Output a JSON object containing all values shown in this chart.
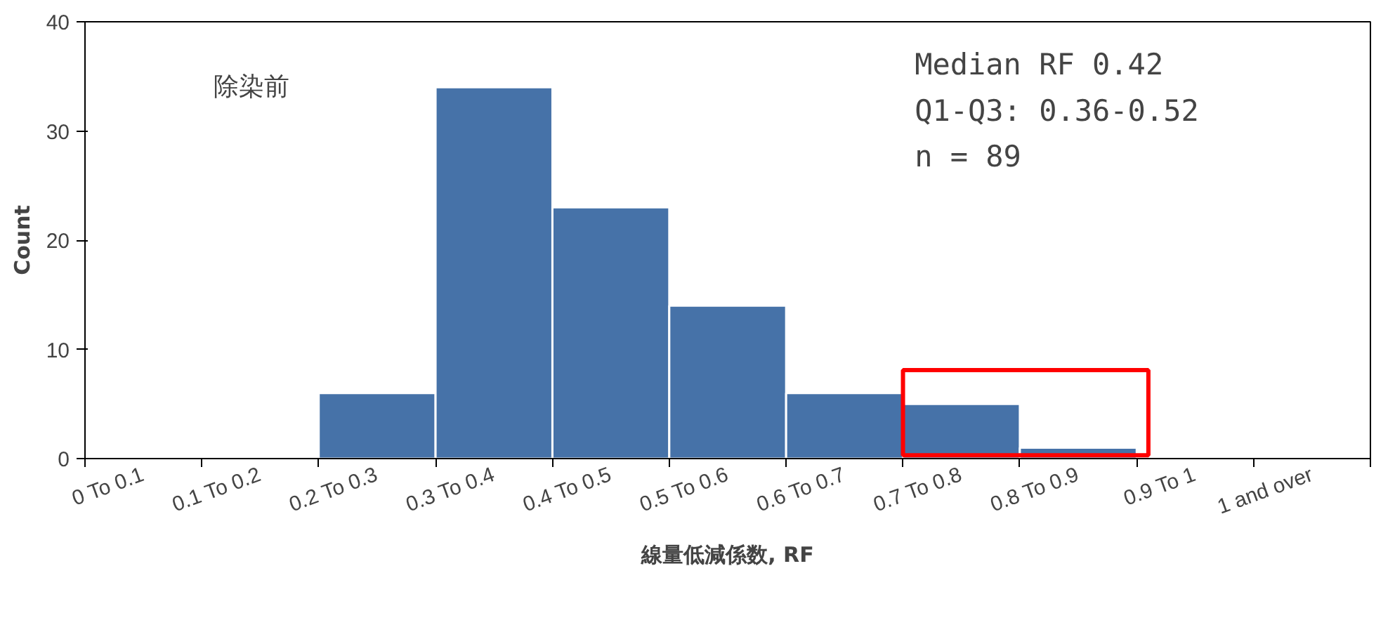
{
  "chart_data": {
    "type": "bar",
    "xlabel": "線量低減係数, RF",
    "ylabel": "Count",
    "categories": [
      "0 To 0.1",
      "0.1 To 0.2",
      "0.2 To 0.3",
      "0.3 To 0.4",
      "0.4 To 0.5",
      "0.5 To 0.6",
      "0.6 To 0.7",
      "0.7 To 0.8",
      "0.8 To 0.9",
      "0.9 To 1",
      "1 and over"
    ],
    "values": [
      0,
      0,
      6,
      34,
      23,
      14,
      6,
      5,
      1,
      0,
      0
    ],
    "color": "#4672a8",
    "ylim": [
      0,
      40
    ],
    "yticks": [
      0,
      10,
      20,
      30,
      40
    ],
    "annotations": [
      "除染前",
      "Median RF  0.42",
      "Q1-Q3: 0.36-0.52",
      "n = 89"
    ]
  }
}
